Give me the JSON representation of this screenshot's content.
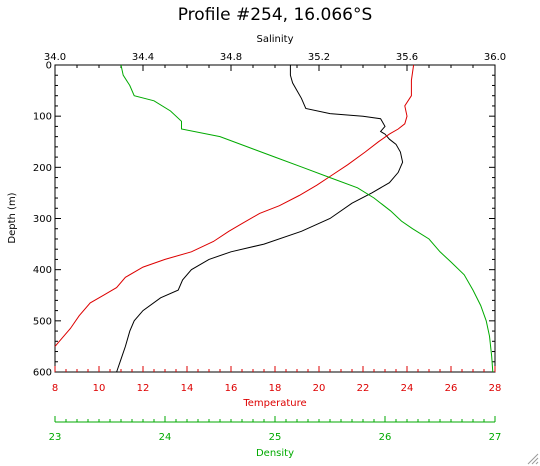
{
  "chart_data": {
    "type": "line",
    "title": "Profile #254, 16.066°S",
    "ylabel": "Depth (m)",
    "ylim": [
      0,
      600
    ],
    "y_inverted": true,
    "y_ticks": [
      "0",
      "100",
      "200",
      "300",
      "400",
      "500",
      "600"
    ],
    "y_tick_values": [
      0,
      100,
      200,
      300,
      400,
      500,
      600
    ],
    "axes": {
      "temperature": {
        "label": "Temperature",
        "position": "bottom",
        "color": "#dd0000",
        "range": [
          8,
          28
        ],
        "ticks": [
          "8",
          "10",
          "12",
          "14",
          "16",
          "18",
          "20",
          "22",
          "24",
          "26",
          "28"
        ],
        "tick_values": [
          8,
          10,
          12,
          14,
          16,
          18,
          20,
          22,
          24,
          26,
          28
        ]
      },
      "salinity": {
        "label": "Salinity",
        "position": "top",
        "color": "#000000",
        "range": [
          34.0,
          36.0
        ],
        "ticks": [
          "34.0",
          "34.4",
          "34.8",
          "35.2",
          "35.6",
          "36.0"
        ],
        "tick_values": [
          34.0,
          34.4,
          34.8,
          35.2,
          35.6,
          36.0
        ]
      },
      "density": {
        "label": "Density",
        "position": "bottom-detached",
        "color": "#00aa00",
        "range": [
          23,
          27
        ],
        "ticks": [
          "23",
          "24",
          "25",
          "26",
          "27"
        ],
        "tick_values": [
          23,
          24,
          25,
          26,
          27
        ]
      }
    },
    "series": [
      {
        "axis": "salinity",
        "color": "#000000",
        "points": [
          [
            35.07,
            0
          ],
          [
            35.07,
            20
          ],
          [
            35.08,
            35
          ],
          [
            35.1,
            50
          ],
          [
            35.12,
            65
          ],
          [
            35.14,
            85
          ],
          [
            35.25,
            95
          ],
          [
            35.4,
            100
          ],
          [
            35.48,
            105
          ],
          [
            35.5,
            120
          ],
          [
            35.48,
            130
          ],
          [
            35.5,
            135
          ],
          [
            35.52,
            145
          ],
          [
            35.55,
            155
          ],
          [
            35.57,
            170
          ],
          [
            35.58,
            190
          ],
          [
            35.56,
            210
          ],
          [
            35.52,
            230
          ],
          [
            35.44,
            250
          ],
          [
            35.35,
            270
          ],
          [
            35.25,
            300
          ],
          [
            35.12,
            325
          ],
          [
            34.95,
            350
          ],
          [
            34.8,
            365
          ],
          [
            34.7,
            380
          ],
          [
            34.62,
            400
          ],
          [
            34.58,
            420
          ],
          [
            34.56,
            440
          ],
          [
            34.48,
            455
          ],
          [
            34.4,
            480
          ],
          [
            34.36,
            500
          ],
          [
            34.34,
            520
          ],
          [
            34.32,
            550
          ],
          [
            34.3,
            575
          ],
          [
            34.28,
            600
          ]
        ]
      },
      {
        "axis": "temperature",
        "color": "#dd0000",
        "points": [
          [
            24.3,
            0
          ],
          [
            24.2,
            30
          ],
          [
            24.2,
            60
          ],
          [
            23.9,
            80
          ],
          [
            24.0,
            100
          ],
          [
            23.9,
            115
          ],
          [
            23.6,
            125
          ],
          [
            23.2,
            135
          ],
          [
            22.7,
            150
          ],
          [
            22.1,
            170
          ],
          [
            21.3,
            195
          ],
          [
            20.6,
            215
          ],
          [
            19.9,
            235
          ],
          [
            19.1,
            255
          ],
          [
            18.2,
            275
          ],
          [
            17.3,
            290
          ],
          [
            16.5,
            310
          ],
          [
            15.9,
            325
          ],
          [
            15.2,
            345
          ],
          [
            14.2,
            365
          ],
          [
            13.0,
            380
          ],
          [
            12.0,
            395
          ],
          [
            11.2,
            415
          ],
          [
            10.8,
            435
          ],
          [
            10.2,
            450
          ],
          [
            9.6,
            465
          ],
          [
            9.1,
            490
          ],
          [
            8.7,
            515
          ],
          [
            8.3,
            535
          ],
          [
            8.0,
            550
          ]
        ]
      },
      {
        "axis": "density",
        "color": "#00aa00",
        "points": [
          [
            23.6,
            0
          ],
          [
            23.62,
            20
          ],
          [
            23.68,
            40
          ],
          [
            23.72,
            60
          ],
          [
            23.9,
            70
          ],
          [
            24.05,
            90
          ],
          [
            24.15,
            110
          ],
          [
            24.15,
            125
          ],
          [
            24.5,
            140
          ],
          [
            24.75,
            160
          ],
          [
            25.0,
            180
          ],
          [
            25.25,
            200
          ],
          [
            25.5,
            220
          ],
          [
            25.75,
            240
          ],
          [
            25.9,
            260
          ],
          [
            26.05,
            285
          ],
          [
            26.15,
            305
          ],
          [
            26.25,
            320
          ],
          [
            26.4,
            340
          ],
          [
            26.5,
            365
          ],
          [
            26.6,
            385
          ],
          [
            26.72,
            410
          ],
          [
            26.8,
            440
          ],
          [
            26.87,
            470
          ],
          [
            26.92,
            500
          ],
          [
            26.95,
            530
          ],
          [
            26.97,
            570
          ],
          [
            26.98,
            600
          ]
        ]
      }
    ]
  }
}
